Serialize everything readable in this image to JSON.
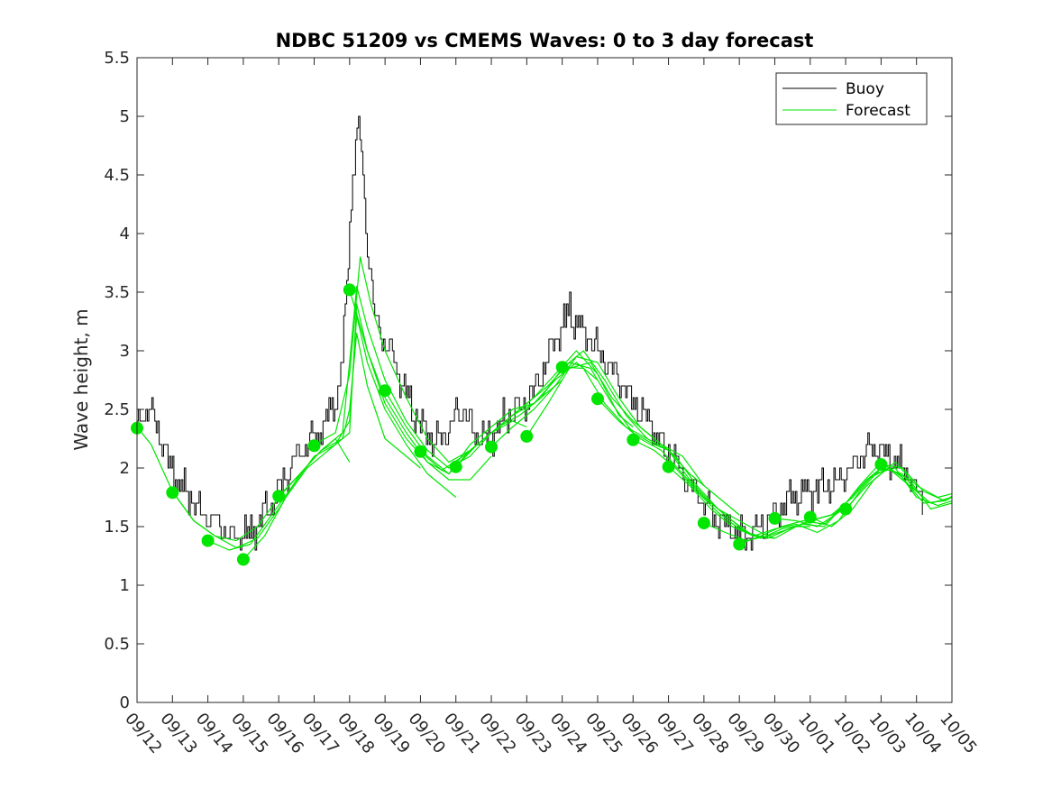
{
  "chart_data": {
    "type": "line",
    "title": "NDBC 51209 vs CMEMS Waves: 0 to 3 day forecast",
    "xlabel": "",
    "ylabel": "Wave height, m",
    "ylim": [
      0,
      5.5
    ],
    "xlim": [
      0,
      23
    ],
    "yticks": [
      0,
      0.5,
      1,
      1.5,
      2,
      2.5,
      3,
      3.5,
      4,
      4.5,
      5,
      5.5
    ],
    "ytick_labels": [
      "0",
      "0.5",
      "1",
      "1.5",
      "2",
      "2.5",
      "3",
      "3.5",
      "4",
      "4.5",
      "5",
      "5.5"
    ],
    "xtick_labels": [
      "09/12",
      "09/13",
      "09/14",
      "09/15",
      "09/16",
      "09/17",
      "09/18",
      "09/19",
      "09/20",
      "09/21",
      "09/22",
      "09/23",
      "09/24",
      "09/25",
      "09/26",
      "09/27",
      "09/28",
      "09/29",
      "09/30",
      "10/01",
      "10/02",
      "10/03",
      "10/04",
      "10/05"
    ],
    "legend": {
      "position": "top-right",
      "entries": [
        {
          "label": "Buoy",
          "color": "#000000"
        },
        {
          "label": "Forecast",
          "color": "#00e600"
        }
      ]
    },
    "colors": {
      "buoy": "#000000",
      "forecast": "#00e600",
      "marker": "#00e600"
    },
    "buoy_anchors": [
      [
        0,
        2.35
      ],
      [
        0.2,
        2.5
      ],
      [
        0.4,
        2.45
      ],
      [
        0.6,
        2.3
      ],
      [
        0.9,
        2.05
      ],
      [
        1.2,
        1.85
      ],
      [
        1.5,
        1.75
      ],
      [
        1.8,
        1.6
      ],
      [
        2.2,
        1.55
      ],
      [
        2.6,
        1.45
      ],
      [
        3.0,
        1.42
      ],
      [
        3.4,
        1.5
      ],
      [
        3.8,
        1.7
      ],
      [
        4.2,
        1.95
      ],
      [
        4.6,
        2.15
      ],
      [
        5.0,
        2.25
      ],
      [
        5.3,
        2.4
      ],
      [
        5.6,
        2.55
      ],
      [
        5.8,
        2.9
      ],
      [
        5.95,
        3.8
      ],
      [
        6.1,
        4.6
      ],
      [
        6.25,
        4.9
      ],
      [
        6.35,
        4.6
      ],
      [
        6.5,
        3.9
      ],
      [
        6.7,
        3.3
      ],
      [
        7.0,
        3.05
      ],
      [
        7.3,
        2.9
      ],
      [
        7.6,
        2.6
      ],
      [
        8.0,
        2.35
      ],
      [
        8.4,
        2.2
      ],
      [
        8.7,
        2.3
      ],
      [
        9.0,
        2.45
      ],
      [
        9.2,
        2.5
      ],
      [
        9.5,
        2.3
      ],
      [
        9.8,
        2.25
      ],
      [
        10.2,
        2.35
      ],
      [
        10.5,
        2.45
      ],
      [
        10.8,
        2.5
      ],
      [
        11.2,
        2.65
      ],
      [
        11.6,
        2.95
      ],
      [
        12.0,
        3.2
      ],
      [
        12.2,
        3.35
      ],
      [
        12.5,
        3.2
      ],
      [
        12.8,
        3.1
      ],
      [
        13.2,
        2.9
      ],
      [
        13.6,
        2.75
      ],
      [
        14.0,
        2.55
      ],
      [
        14.4,
        2.4
      ],
      [
        14.8,
        2.2
      ],
      [
        15.2,
        2.05
      ],
      [
        15.6,
        1.85
      ],
      [
        16.0,
        1.7
      ],
      [
        16.4,
        1.55
      ],
      [
        16.8,
        1.48
      ],
      [
        17.2,
        1.42
      ],
      [
        17.6,
        1.5
      ],
      [
        18.0,
        1.6
      ],
      [
        18.4,
        1.75
      ],
      [
        18.8,
        1.8
      ],
      [
        19.2,
        1.82
      ],
      [
        19.6,
        1.85
      ],
      [
        20.0,
        1.95
      ],
      [
        20.4,
        2.1
      ],
      [
        20.8,
        2.2
      ],
      [
        21.2,
        2.1
      ],
      [
        21.6,
        2.0
      ],
      [
        22.0,
        1.8
      ],
      [
        22.2,
        1.7
      ]
    ],
    "forecast_runs": [
      [
        [
          0,
          2.35
        ],
        [
          0.4,
          2.2
        ],
        [
          1.0,
          1.8
        ],
        [
          1.6,
          1.55
        ],
        [
          2.2,
          1.42
        ],
        [
          2.8,
          1.32
        ],
        [
          3.4,
          1.4
        ],
        [
          4.0,
          1.65
        ],
        [
          4.6,
          1.95
        ],
        [
          5.2,
          2.15
        ],
        [
          5.6,
          2.25
        ],
        [
          6.0,
          2.05
        ]
      ],
      [
        [
          1,
          1.8
        ],
        [
          1.6,
          1.55
        ],
        [
          2.2,
          1.42
        ],
        [
          2.8,
          1.38
        ],
        [
          3.4,
          1.5
        ],
        [
          4.0,
          1.75
        ],
        [
          4.6,
          1.95
        ],
        [
          5.2,
          2.15
        ],
        [
          5.8,
          2.25
        ],
        [
          6.0,
          2.5
        ],
        [
          6.2,
          3.15
        ],
        [
          6.5,
          2.7
        ],
        [
          7.0,
          2.25
        ],
        [
          7.6,
          2.1
        ],
        [
          8.0,
          2.0
        ]
      ],
      [
        [
          2,
          1.38
        ],
        [
          2.6,
          1.3
        ],
        [
          3.2,
          1.35
        ],
        [
          3.8,
          1.6
        ],
        [
          4.4,
          1.85
        ],
        [
          5.0,
          2.1
        ],
        [
          5.6,
          2.2
        ],
        [
          6.0,
          2.4
        ],
        [
          6.2,
          3.3
        ],
        [
          6.5,
          2.9
        ],
        [
          7.0,
          2.5
        ],
        [
          7.6,
          2.2
        ],
        [
          8.2,
          1.95
        ],
        [
          8.8,
          1.8
        ],
        [
          9.0,
          1.75
        ]
      ],
      [
        [
          3,
          1.22
        ],
        [
          3.6,
          1.42
        ],
        [
          4.2,
          1.75
        ],
        [
          4.8,
          2.0
        ],
        [
          5.4,
          2.15
        ],
        [
          6.0,
          2.3
        ],
        [
          6.2,
          3.4
        ],
        [
          6.5,
          3.0
        ],
        [
          7.0,
          2.55
        ],
        [
          7.6,
          2.25
        ],
        [
          8.2,
          2.05
        ],
        [
          8.8,
          1.9
        ],
        [
          9.4,
          1.9
        ],
        [
          10.0,
          2.1
        ]
      ],
      [
        [
          4,
          1.76
        ],
        [
          4.6,
          1.95
        ],
        [
          5.2,
          2.15
        ],
        [
          5.8,
          2.3
        ],
        [
          6.0,
          2.9
        ],
        [
          6.2,
          3.55
        ],
        [
          6.5,
          3.2
        ],
        [
          7.0,
          2.75
        ],
        [
          7.6,
          2.4
        ],
        [
          8.2,
          2.15
        ],
        [
          8.8,
          2.0
        ],
        [
          9.4,
          2.1
        ],
        [
          10.0,
          2.3
        ],
        [
          10.6,
          2.4
        ],
        [
          11.0,
          2.35
        ]
      ],
      [
        [
          5,
          2.2
        ],
        [
          5.6,
          2.3
        ],
        [
          6.0,
          2.8
        ],
        [
          6.3,
          3.8
        ],
        [
          6.6,
          3.4
        ],
        [
          7.0,
          3.0
        ],
        [
          7.6,
          2.6
        ],
        [
          8.2,
          2.25
        ],
        [
          8.8,
          2.05
        ],
        [
          9.4,
          2.15
        ],
        [
          10.0,
          2.3
        ],
        [
          10.6,
          2.45
        ],
        [
          11.2,
          2.55
        ],
        [
          11.8,
          2.7
        ],
        [
          12.0,
          2.75
        ]
      ],
      [
        [
          6,
          3.52
        ],
        [
          6.5,
          3.0
        ],
        [
          7.0,
          2.6
        ],
        [
          7.6,
          2.3
        ],
        [
          8.2,
          2.05
        ],
        [
          8.8,
          1.95
        ],
        [
          9.4,
          2.2
        ],
        [
          10.0,
          2.35
        ],
        [
          10.6,
          2.5
        ],
        [
          11.2,
          2.55
        ],
        [
          11.8,
          2.75
        ],
        [
          12.4,
          2.9
        ],
        [
          13.0,
          2.75
        ]
      ],
      [
        [
          7,
          2.66
        ],
        [
          7.6,
          2.35
        ],
        [
          8.2,
          2.1
        ],
        [
          8.8,
          1.95
        ],
        [
          9.4,
          2.15
        ],
        [
          10.0,
          2.3
        ],
        [
          10.6,
          2.45
        ],
        [
          11.2,
          2.6
        ],
        [
          11.8,
          2.8
        ],
        [
          12.4,
          3.0
        ],
        [
          13.0,
          2.8
        ],
        [
          13.6,
          2.45
        ],
        [
          14.0,
          2.35
        ]
      ],
      [
        [
          8,
          2.14
        ],
        [
          8.6,
          1.98
        ],
        [
          9.2,
          2.1
        ],
        [
          9.8,
          2.25
        ],
        [
          10.4,
          2.4
        ],
        [
          11.0,
          2.55
        ],
        [
          11.6,
          2.7
        ],
        [
          12.2,
          2.9
        ],
        [
          12.8,
          2.85
        ],
        [
          13.4,
          2.55
        ],
        [
          14.0,
          2.3
        ],
        [
          14.6,
          2.2
        ],
        [
          15.0,
          2.15
        ]
      ],
      [
        [
          9,
          2.01
        ],
        [
          9.6,
          2.2
        ],
        [
          10.2,
          2.35
        ],
        [
          10.8,
          2.45
        ],
        [
          11.4,
          2.6
        ],
        [
          12.0,
          2.85
        ],
        [
          12.6,
          3.0
        ],
        [
          13.2,
          2.75
        ],
        [
          13.8,
          2.45
        ],
        [
          14.4,
          2.25
        ],
        [
          15.0,
          2.15
        ],
        [
          15.6,
          1.95
        ],
        [
          16.0,
          1.85
        ]
      ],
      [
        [
          10,
          2.18
        ],
        [
          10.6,
          2.35
        ],
        [
          11.2,
          2.5
        ],
        [
          11.8,
          2.7
        ],
        [
          12.4,
          2.95
        ],
        [
          13.0,
          2.9
        ],
        [
          13.6,
          2.6
        ],
        [
          14.2,
          2.35
        ],
        [
          14.8,
          2.2
        ],
        [
          15.4,
          2.1
        ],
        [
          16.0,
          1.85
        ],
        [
          16.6,
          1.7
        ],
        [
          17.0,
          1.6
        ]
      ],
      [
        [
          11,
          2.27
        ],
        [
          11.6,
          2.55
        ],
        [
          12.2,
          2.85
        ],
        [
          12.8,
          2.9
        ],
        [
          13.4,
          2.6
        ],
        [
          14.0,
          2.4
        ],
        [
          14.6,
          2.25
        ],
        [
          15.2,
          2.1
        ],
        [
          15.8,
          1.85
        ],
        [
          16.4,
          1.65
        ],
        [
          17.0,
          1.55
        ],
        [
          17.6,
          1.45
        ],
        [
          18.0,
          1.4
        ]
      ],
      [
        [
          12,
          2.86
        ],
        [
          12.6,
          2.85
        ],
        [
          13.2,
          2.55
        ],
        [
          13.8,
          2.35
        ],
        [
          14.4,
          2.25
        ],
        [
          15.0,
          2.15
        ],
        [
          15.6,
          1.9
        ],
        [
          16.2,
          1.7
        ],
        [
          16.8,
          1.55
        ],
        [
          17.4,
          1.42
        ],
        [
          18.0,
          1.4
        ],
        [
          18.6,
          1.5
        ],
        [
          19.0,
          1.5
        ]
      ],
      [
        [
          13,
          2.59
        ],
        [
          13.6,
          2.4
        ],
        [
          14.2,
          2.25
        ],
        [
          14.8,
          2.15
        ],
        [
          15.4,
          1.95
        ],
        [
          16.0,
          1.75
        ],
        [
          16.6,
          1.6
        ],
        [
          17.2,
          1.45
        ],
        [
          17.8,
          1.4
        ],
        [
          18.4,
          1.48
        ],
        [
          19.0,
          1.55
        ],
        [
          19.6,
          1.6
        ],
        [
          20.0,
          1.65
        ]
      ],
      [
        [
          14,
          2.24
        ],
        [
          14.6,
          2.15
        ],
        [
          15.2,
          2.0
        ],
        [
          15.8,
          1.8
        ],
        [
          16.4,
          1.62
        ],
        [
          17.0,
          1.48
        ],
        [
          17.6,
          1.4
        ],
        [
          18.2,
          1.48
        ],
        [
          18.8,
          1.52
        ],
        [
          19.4,
          1.5
        ],
        [
          20.0,
          1.7
        ],
        [
          20.6,
          1.9
        ],
        [
          21.0,
          2.0
        ]
      ],
      [
        [
          15,
          2.01
        ],
        [
          15.6,
          1.85
        ],
        [
          16.2,
          1.65
        ],
        [
          16.8,
          1.5
        ],
        [
          17.4,
          1.42
        ],
        [
          18.0,
          1.48
        ],
        [
          18.6,
          1.52
        ],
        [
          19.2,
          1.45
        ],
        [
          19.8,
          1.55
        ],
        [
          20.4,
          1.8
        ],
        [
          21.0,
          2.0
        ],
        [
          21.6,
          1.95
        ],
        [
          22.0,
          1.8
        ]
      ],
      [
        [
          16,
          1.53
        ],
        [
          16.6,
          1.45
        ],
        [
          17.2,
          1.38
        ],
        [
          17.8,
          1.42
        ],
        [
          18.4,
          1.48
        ],
        [
          19.0,
          1.55
        ],
        [
          19.6,
          1.6
        ],
        [
          20.2,
          1.75
        ],
        [
          20.8,
          1.95
        ],
        [
          21.4,
          2.0
        ],
        [
          22.0,
          1.75
        ],
        [
          22.6,
          1.68
        ],
        [
          23.0,
          1.72
        ]
      ],
      [
        [
          17,
          1.35
        ],
        [
          17.6,
          1.42
        ],
        [
          18.2,
          1.5
        ],
        [
          18.8,
          1.55
        ],
        [
          19.4,
          1.52
        ],
        [
          20.0,
          1.7
        ],
        [
          20.6,
          1.9
        ],
        [
          21.2,
          2.0
        ],
        [
          21.8,
          1.85
        ],
        [
          22.4,
          1.7
        ],
        [
          23.0,
          1.75
        ]
      ],
      [
        [
          18,
          1.57
        ],
        [
          18.6,
          1.55
        ],
        [
          19.2,
          1.5
        ],
        [
          19.8,
          1.62
        ],
        [
          20.4,
          1.85
        ],
        [
          21.0,
          2.05
        ],
        [
          21.6,
          1.92
        ],
        [
          22.2,
          1.7
        ],
        [
          22.8,
          1.72
        ],
        [
          23.0,
          1.76
        ]
      ],
      [
        [
          19,
          1.58
        ],
        [
          19.6,
          1.5
        ],
        [
          20.2,
          1.65
        ],
        [
          20.8,
          1.9
        ],
        [
          21.4,
          2.05
        ],
        [
          22.0,
          1.85
        ],
        [
          22.6,
          1.75
        ],
        [
          23.0,
          1.78
        ]
      ],
      [
        [
          20,
          1.65
        ],
        [
          20.6,
          1.85
        ],
        [
          21.2,
          2.0
        ],
        [
          21.8,
          1.9
        ],
        [
          22.4,
          1.65
        ],
        [
          23.0,
          1.7
        ]
      ],
      [
        [
          21,
          2.03
        ],
        [
          21.6,
          2.0
        ],
        [
          22.2,
          1.8
        ],
        [
          22.8,
          1.72
        ],
        [
          23.0,
          1.75
        ]
      ]
    ],
    "markers": [
      {
        "x": 0,
        "y": 2.34
      },
      {
        "x": 1,
        "y": 1.79
      },
      {
        "x": 2,
        "y": 1.38
      },
      {
        "x": 3,
        "y": 1.22
      },
      {
        "x": 4,
        "y": 1.76
      },
      {
        "x": 5,
        "y": 2.19
      },
      {
        "x": 6,
        "y": 3.52
      },
      {
        "x": 7,
        "y": 2.66
      },
      {
        "x": 8,
        "y": 2.14
      },
      {
        "x": 9,
        "y": 2.01
      },
      {
        "x": 10,
        "y": 2.18
      },
      {
        "x": 11,
        "y": 2.27
      },
      {
        "x": 12,
        "y": 2.86
      },
      {
        "x": 13,
        "y": 2.59
      },
      {
        "x": 14,
        "y": 2.24
      },
      {
        "x": 15,
        "y": 2.01
      },
      {
        "x": 16,
        "y": 1.53
      },
      {
        "x": 17,
        "y": 1.35
      },
      {
        "x": 18,
        "y": 1.57
      },
      {
        "x": 19,
        "y": 1.58
      },
      {
        "x": 20,
        "y": 1.65
      },
      {
        "x": 21,
        "y": 2.03
      }
    ]
  }
}
